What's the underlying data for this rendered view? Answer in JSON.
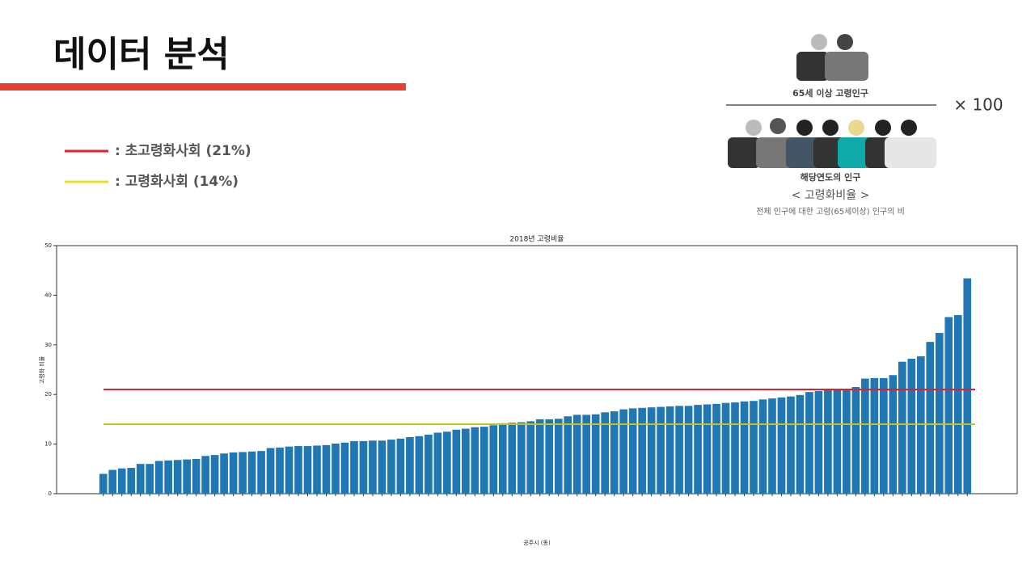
{
  "header": {
    "title": "데이터 분석"
  },
  "legend": [
    {
      "label": ": 초고령화사회 (21%)",
      "color": "#e0202a"
    },
    {
      "label": ": 고령화사회 (14%)",
      "color": "#e8e020"
    }
  ],
  "formula": {
    "numerator": "65세 이상 고령인구",
    "multiplier": "× 100",
    "denominator": "해당연도의 인구",
    "name": "< 고령화비율 >",
    "description": "전체 인구에 대한 고령(65세이상) 인구의 비"
  },
  "chart_data": {
    "type": "bar",
    "title": "2018년 고령비율",
    "x_label": "공주시 (동)",
    "y_label": "고령화 비율",
    "color": "#1f77b4",
    "ylim": [
      0,
      50
    ],
    "yticks": [
      0,
      10,
      20,
      30,
      40,
      50
    ],
    "reference_lines": [
      {
        "value": 21,
        "color": "#e0202a"
      },
      {
        "value": 14,
        "color": "#c8c020"
      }
    ],
    "categories": [
      null,
      null,
      null,
      null,
      null,
      null,
      null,
      null,
      null,
      null,
      null,
      null,
      null,
      null,
      null,
      null,
      null,
      null,
      null,
      null,
      null,
      null,
      null,
      null,
      null,
      null,
      null,
      null,
      null,
      null,
      null,
      null,
      null,
      null,
      null,
      null,
      null,
      null,
      null,
      null,
      null,
      null,
      null,
      null,
      null,
      null,
      null,
      null,
      null,
      null,
      null,
      null,
      null,
      null,
      null,
      null,
      null,
      null,
      null,
      null,
      null,
      null,
      null,
      null,
      null,
      null,
      null,
      null,
      null,
      null,
      null,
      null,
      null,
      null,
      null,
      null,
      null,
      null,
      null,
      null,
      null,
      null,
      null,
      null,
      null,
      null,
      null,
      null,
      null,
      null,
      null,
      null,
      null,
      null
    ],
    "values": [
      4.0,
      4.8,
      5.1,
      5.2,
      6.0,
      6.0,
      6.6,
      6.7,
      6.8,
      6.9,
      7.0,
      7.6,
      7.8,
      8.1,
      8.3,
      8.4,
      8.5,
      8.6,
      9.2,
      9.3,
      9.5,
      9.6,
      9.6,
      9.7,
      9.8,
      10.1,
      10.3,
      10.6,
      10.6,
      10.7,
      10.7,
      10.9,
      11.1,
      11.4,
      11.6,
      11.9,
      12.3,
      12.5,
      12.9,
      13.1,
      13.4,
      13.5,
      13.8,
      14.2,
      14.3,
      14.4,
      14.6,
      15.0,
      15.0,
      15.1,
      15.6,
      15.9,
      15.9,
      16.0,
      16.4,
      16.6,
      17.0,
      17.2,
      17.3,
      17.4,
      17.5,
      17.6,
      17.7,
      17.7,
      17.9,
      18.0,
      18.1,
      18.3,
      18.4,
      18.6,
      18.7,
      19.0,
      19.2,
      19.4,
      19.6,
      19.9,
      20.5,
      20.7,
      20.9,
      21.0,
      21.0,
      21.5,
      23.2,
      23.3,
      23.3,
      23.9,
      26.6,
      27.2,
      27.7,
      30.6,
      32.4,
      35.6,
      36.0,
      43.4
    ]
  }
}
